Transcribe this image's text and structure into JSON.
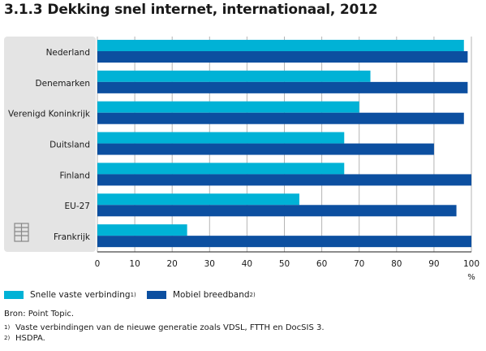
{
  "title": {
    "number": "3.1.3",
    "text": "Dekking snel internet, internationaal, 2012"
  },
  "legend": {
    "items": [
      {
        "label": "Snelle vaste verbinding",
        "note": "1)",
        "color": "#00b2d6"
      },
      {
        "label": "Mobiel breedband",
        "note": "2)",
        "color": "#0c4fa0"
      }
    ]
  },
  "source": "Bron: Point Topic.",
  "footnotes": [
    {
      "num": "1)",
      "text": "Vaste verbindingen van de nieuwe generatie zoals VDSL, FTTH en DocSIS 3."
    },
    {
      "num": "2)",
      "text": "HSDPA."
    }
  ],
  "icon": "table-icon",
  "chart_data": {
    "type": "bar",
    "orientation": "horizontal",
    "categories": [
      "Nederland",
      "Denemarken",
      "Verenigd Koninkrijk",
      "Duitsland",
      "Finland",
      "EU-27",
      "Frankrijk"
    ],
    "series": [
      {
        "name": "Snelle vaste verbinding",
        "values": [
          98,
          73,
          70,
          66,
          66,
          54,
          24
        ]
      },
      {
        "name": "Mobiel breedband",
        "values": [
          99,
          99,
          98,
          90,
          100,
          96,
          100
        ]
      }
    ],
    "xlim": [
      0,
      100
    ],
    "xticks": [
      0,
      10,
      20,
      30,
      40,
      50,
      60,
      70,
      80,
      90,
      100
    ],
    "xunit": "%",
    "grid": true,
    "colors": {
      "category_panel": "#e4e4e4",
      "gridline": "#b4b4b4",
      "plot_background": "#ffffff"
    }
  }
}
